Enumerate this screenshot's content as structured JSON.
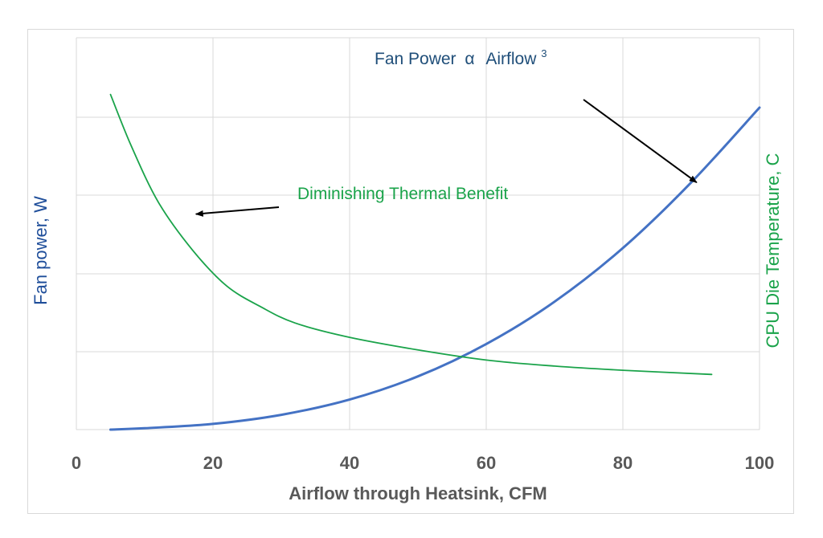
{
  "chart_data": {
    "type": "line",
    "xlabel": "Airflow through Heatsink, CFM",
    "ylabel_left": "Fan power, W",
    "ylabel_right": "CPU Die Temperature, C",
    "xlim": [
      0,
      100
    ],
    "x_ticks": [
      "0",
      "20",
      "40",
      "60",
      "80",
      "100"
    ],
    "grid": true,
    "series": [
      {
        "name": "",
        "axis": "left",
        "color": "#4472c4",
        "x": [
          5,
          10,
          20,
          30,
          40,
          50,
          60,
          70,
          80,
          90,
          100
        ],
        "y": [
          0.0,
          0.06,
          0.25,
          0.65,
          1.32,
          2.34,
          3.76,
          5.62,
          7.98,
          10.86,
          14.15
        ]
      },
      {
        "name": "",
        "axis": "right",
        "color": "#1aa34a",
        "x": [
          5,
          8,
          12,
          17,
          22,
          27,
          32,
          40,
          50,
          60,
          70,
          80,
          93
        ],
        "y": [
          4.3,
          3.45,
          2.5,
          1.7,
          1.1,
          0.75,
          0.48,
          0.24,
          0.03,
          -0.14,
          -0.24,
          -0.31,
          -0.38
        ]
      }
    ],
    "annotations": [
      {
        "text_main": "Fan Power",
        "text_alpha": "α",
        "text_var": "Airflow",
        "text_exp": "3",
        "color": "#1f4e79",
        "x": 90.8,
        "y": 10.86,
        "axis": "left"
      },
      {
        "text": "Diminishing Thermal Benefit",
        "color": "#1aa34a",
        "x": 17.5,
        "y": 2.3,
        "axis": "right"
      }
    ]
  }
}
